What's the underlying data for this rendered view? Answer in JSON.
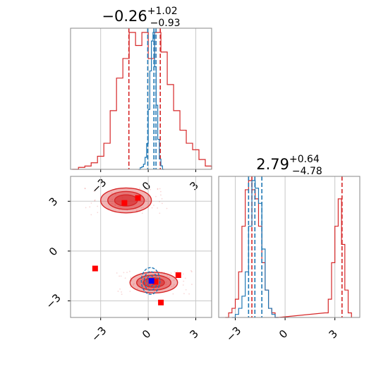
{
  "colors": {
    "primary": "#d62728",
    "secondary": "#1f77b4",
    "primary_marker": "#ff0000",
    "secondary_marker": "#0000ff",
    "grid": "#c8c8c8",
    "frame": "#888888"
  },
  "titles": [
    {
      "main": "−0.26",
      "sup": "+1.02",
      "sub": "−0.93"
    },
    {
      "main": "2.79",
      "sup": "+0.64",
      "sub": "−4.78"
    }
  ],
  "chart_data": [
    {
      "type": "histogram",
      "panel": "marginal-param-1",
      "x_range": [
        -4.9,
        4.0
      ],
      "x_ticks": [
        -3,
        0,
        3
      ],
      "grid": true,
      "series": [
        {
          "name": "",
          "color": "#d62728",
          "bins": [
            -4.8,
            -4.4,
            -4.0,
            -3.6,
            -3.2,
            -2.8,
            -2.4,
            -2.0,
            -1.6,
            -1.2,
            -0.8,
            -0.4,
            0.0,
            0.4,
            0.8,
            1.2,
            1.6,
            2.0,
            2.4,
            2.8,
            3.2,
            3.6
          ],
          "counts": [
            0,
            0.3,
            0.5,
            1,
            2,
            4,
            9,
            14,
            17,
            21,
            19,
            21,
            17,
            21,
            18,
            13,
            9,
            6,
            4,
            3,
            1.5,
            0.5
          ],
          "quantile_lines": [
            -1.22,
            0.76
          ]
        },
        {
          "name": "",
          "color": "#1f77b4",
          "bins": [
            -0.6,
            -0.5,
            -0.4,
            -0.3,
            -0.2,
            -0.1,
            0.0,
            0.1,
            0.2,
            0.3,
            0.4,
            0.5,
            0.6,
            0.7,
            0.8,
            0.9
          ],
          "counts": [
            0,
            2,
            3,
            6,
            14,
            30,
            70,
            115,
            150,
            160,
            120,
            75,
            35,
            12,
            4,
            0
          ],
          "quantile_lines": [
            -0.03,
            0.36,
            0.49
          ]
        }
      ]
    },
    {
      "type": "contour",
      "panel": "joint-param-1-vs-param-2",
      "x_range": [
        -4.9,
        4.0
      ],
      "y_range": [
        -4.0,
        4.5
      ],
      "x_ticks": [
        -3,
        0,
        3
      ],
      "y_ticks": [
        -3,
        0,
        3
      ],
      "grid": true,
      "series": [
        {
          "name": "",
          "color": "#d62728",
          "modes": [
            {
              "x": -1.4,
              "y": 3.05,
              "sx": 1.6,
              "sy": 0.6
            },
            {
              "x": 0.35,
              "y": -1.9,
              "sx": 1.5,
              "sy": 0.5
            }
          ]
        },
        {
          "name": "",
          "color": "#1f77b4",
          "modes": [
            {
              "x": 0.15,
              "y": -1.8,
              "sx": 0.45,
              "sy": 0.7
            }
          ]
        }
      ],
      "markers": [
        {
          "color": "#ff0000",
          "points": [
            [
              -1.5,
              2.9
            ],
            [
              -0.65,
              3.2
            ],
            [
              -3.35,
              -1.05
            ],
            [
              0.8,
              -3.1
            ],
            [
              1.9,
              -1.45
            ],
            [
              0.45,
              -1.85
            ]
          ]
        },
        {
          "color": "#0000ff",
          "points": [
            [
              0.2,
              -1.8
            ]
          ]
        }
      ]
    },
    {
      "type": "histogram",
      "panel": "marginal-param-2",
      "x_range": [
        -4.0,
        4.5
      ],
      "x_ticks": [
        -3,
        0,
        3
      ],
      "grid": true,
      "series": [
        {
          "name": "",
          "color": "#d62728",
          "bins": [
            -3.6,
            -3.4,
            -3.2,
            -3.0,
            -2.8,
            -2.6,
            -2.4,
            -2.2,
            -2.0,
            -1.8,
            -1.6,
            -1.4,
            -1.2,
            -1.0,
            -0.8,
            -0.6,
            2.4,
            2.6,
            2.8,
            3.0,
            3.2,
            3.4,
            3.6,
            3.8
          ],
          "counts": [
            0,
            0.5,
            1,
            2,
            5,
            10,
            14,
            15,
            14,
            13,
            10,
            6,
            3,
            1,
            0.5,
            0,
            0.5,
            2,
            6,
            10,
            13,
            8,
            3,
            0.5
          ],
          "quantile_lines": [
            -2.0,
            3.43
          ]
        },
        {
          "name": "",
          "color": "#1f77b4",
          "bins": [
            -3.2,
            -3.0,
            -2.8,
            -2.6,
            -2.4,
            -2.2,
            -2.0,
            -1.8,
            -1.6,
            -1.4,
            -1.2,
            -1.0,
            -0.8,
            -0.6
          ],
          "counts": [
            0,
            2,
            6,
            14,
            30,
            60,
            90,
            85,
            75,
            45,
            18,
            6,
            2,
            0
          ],
          "quantile_lines": [
            -2.2,
            -1.82,
            -1.4
          ]
        }
      ]
    }
  ]
}
